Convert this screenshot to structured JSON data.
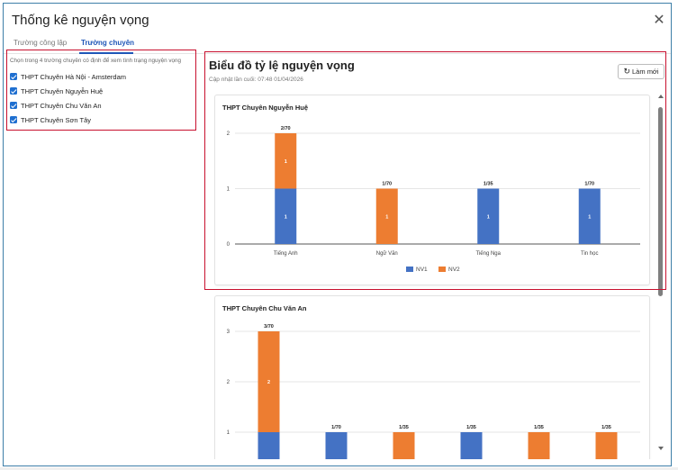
{
  "dialog": {
    "title": "Thống kê nguyện vọng",
    "close_icon": "close-icon",
    "tabs": [
      {
        "label": "Trường công lập",
        "active": false
      },
      {
        "label": "Trường chuyên",
        "active": true
      }
    ]
  },
  "filter": {
    "hint": "Chọn trong 4 trường chuyên có định để xem tình trạng nguyện vọng",
    "schools": [
      {
        "label": "THPT Chuyên Hà Nội - Amsterdam",
        "checked": true
      },
      {
        "label": "THPT Chuyên Nguyễn Huệ",
        "checked": true
      },
      {
        "label": "THPT Chuyên Chu Văn An",
        "checked": true
      },
      {
        "label": "THPT Chuyên Sơn Tây",
        "checked": true
      }
    ]
  },
  "panel": {
    "title": "Biểu đồ tỷ lệ nguyện vọng",
    "updated": "Cập nhật lần cuối: 07:48 01/04/2026",
    "refresh_label": "Làm mới",
    "refresh_icon": "refresh-icon"
  },
  "colors": {
    "NV1": "#4472c4",
    "NV2": "#ed7d31",
    "grid": "#e6e6e6",
    "axis": "#555555"
  },
  "chart_data": [
    {
      "type": "bar",
      "stacked": true,
      "title": "THPT Chuyên Nguyễn Huệ",
      "categories": [
        "Tiếng Anh",
        "Ngữ Văn",
        "Tiếng Nga",
        "Tin học"
      ],
      "series": [
        {
          "name": "NV1",
          "values": [
            1,
            0,
            1,
            1
          ],
          "labels": [
            "1",
            "",
            "1",
            "1"
          ]
        },
        {
          "name": "NV2",
          "values": [
            1,
            1,
            0,
            0
          ],
          "labels": [
            "1",
            "1",
            "",
            ""
          ]
        }
      ],
      "totals": [
        "2/70",
        "1/70",
        "1/35",
        "1/70"
      ],
      "yticks": [
        0,
        1,
        2
      ],
      "ylim": [
        0,
        2
      ],
      "grid": true,
      "legend": "bottom"
    },
    {
      "type": "bar",
      "stacked": true,
      "title": "THPT Chuyên Chu Văn An",
      "series": [
        {
          "name": "NV1",
          "values": [
            1,
            1,
            0,
            1,
            0,
            0
          ]
        },
        {
          "name": "NV2",
          "values": [
            2,
            0,
            1,
            0,
            1,
            1
          ],
          "labels": [
            "2",
            "",
            "",
            "",
            "",
            ""
          ]
        }
      ],
      "totals": [
        "3/70",
        "1/70",
        "1/35",
        "1/35",
        "1/35",
        "1/35"
      ],
      "yticks": [
        1,
        2,
        3
      ],
      "ylim": [
        0,
        3
      ],
      "grid": true
    }
  ]
}
